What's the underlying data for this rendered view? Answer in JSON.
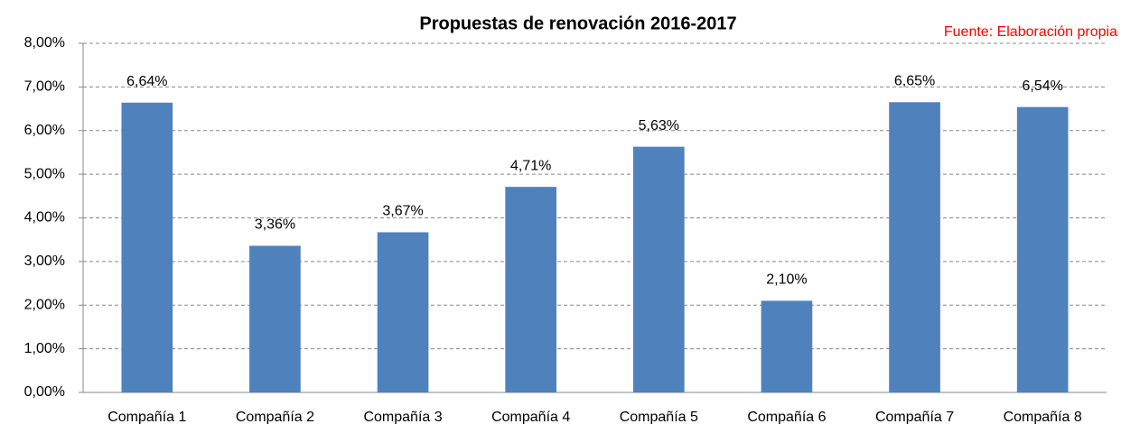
{
  "chart_data": {
    "type": "bar",
    "title": "Propuestas de renovación 2016-2017",
    "annotation": "Fuente: Elaboración propia",
    "categories": [
      "Compañía 1",
      "Compañía 2",
      "Compañía 3",
      "Compañía 4",
      "Compañía 5",
      "Compañía 6",
      "Compañía 7",
      "Compañía 8"
    ],
    "values": [
      6.64,
      3.36,
      3.67,
      4.71,
      5.63,
      2.1,
      6.65,
      6.54
    ],
    "value_labels": [
      "6,64%",
      "3,36%",
      "3,67%",
      "4,71%",
      "5,63%",
      "2,10%",
      "6,65%",
      "6,54%"
    ],
    "color": "#4f81bd",
    "ylim": [
      0,
      8
    ],
    "yticks": [
      {
        "value": 0,
        "label": "0,00%"
      },
      {
        "value": 1,
        "label": "1,00%"
      },
      {
        "value": 2,
        "label": "2,00%"
      },
      {
        "value": 3,
        "label": "3,00%"
      },
      {
        "value": 4,
        "label": "4,00%"
      },
      {
        "value": 5,
        "label": "5,00%"
      },
      {
        "value": 6,
        "label": "6,00%"
      },
      {
        "value": 7,
        "label": "7,00%"
      },
      {
        "value": 8,
        "label": "8,00%"
      }
    ],
    "grid": true
  }
}
